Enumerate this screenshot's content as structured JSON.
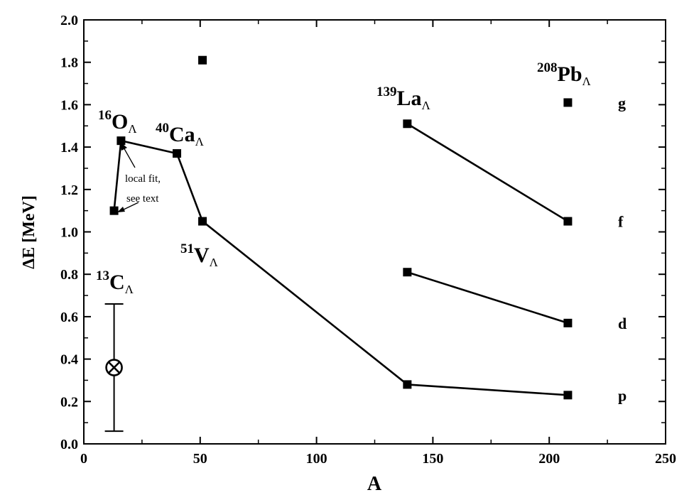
{
  "chart_data": {
    "type": "line",
    "title": "",
    "xlabel": "A",
    "ylabel": "ΔE [MeV]",
    "xlim": [
      0,
      250
    ],
    "ylim": [
      0.0,
      2.0
    ],
    "x_ticks": [
      0,
      50,
      100,
      150,
      200,
      250
    ],
    "x_tick_labels": [
      "0",
      "50",
      "100",
      "150",
      "200",
      "250"
    ],
    "y_ticks": [
      0.0,
      0.2,
      0.4,
      0.6,
      0.8,
      1.0,
      1.2,
      1.4,
      1.6,
      1.8,
      2.0
    ],
    "y_tick_labels": [
      "0.0",
      "0.2",
      "0.4",
      "0.6",
      "0.8",
      "1.0",
      "1.2",
      "1.4",
      "1.6",
      "1.8",
      "2.0"
    ],
    "grid": false,
    "series": [
      {
        "points": [
          [
            13,
            1.1
          ],
          [
            16,
            1.43
          ],
          [
            40,
            1.37
          ],
          [
            51,
            1.05
          ],
          [
            139,
            0.28
          ],
          [
            208,
            0.23
          ]
        ]
      },
      {
        "points": [
          [
            139,
            0.81
          ],
          [
            208,
            0.57
          ]
        ]
      },
      {
        "points": [
          [
            139,
            1.51
          ],
          [
            208,
            1.05
          ]
        ]
      },
      {
        "points": [
          [
            51,
            1.81
          ]
        ]
      },
      {
        "points": [
          [
            208,
            1.61
          ]
        ]
      }
    ],
    "error_points": [
      {
        "x": 13,
        "y": 0.36,
        "y_low": 0.06,
        "y_high": 0.66
      }
    ],
    "state_labels": [
      {
        "text": "p",
        "y": 0.23
      },
      {
        "text": "d",
        "y": 0.57
      },
      {
        "text": "f",
        "y": 1.05
      },
      {
        "text": "g",
        "y": 1.61
      }
    ],
    "nuclide_labels": [
      {
        "mass": "16",
        "symbol": "O",
        "sub": "Λ"
      },
      {
        "mass": "40",
        "symbol": "Ca",
        "sub": "Λ"
      },
      {
        "mass": "51",
        "symbol": "V",
        "sub": "Λ"
      },
      {
        "mass": "13",
        "symbol": "C",
        "sub": "Λ"
      },
      {
        "mass": "139",
        "symbol": "La",
        "sub": "Λ"
      },
      {
        "mass": "208",
        "symbol": "Pb",
        "sub": "Λ"
      }
    ],
    "annotation": {
      "lines": [
        "local fit,",
        "see text"
      ]
    }
  }
}
